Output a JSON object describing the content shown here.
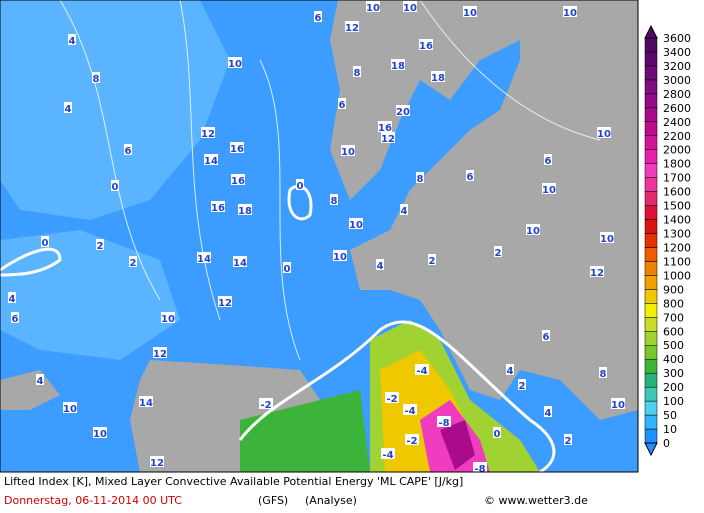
{
  "map": {
    "contour_labels": [
      6,
      10,
      10,
      10,
      10,
      10,
      12,
      16,
      14,
      16,
      16,
      18,
      14,
      14,
      12,
      10,
      12,
      14,
      10,
      10,
      12,
      4,
      6,
      4,
      0,
      2,
      2,
      0,
      6,
      4,
      8,
      4,
      0,
      0,
      10,
      4,
      2,
      2,
      10,
      12,
      10,
      10,
      6,
      10,
      6,
      8,
      4,
      10,
      8,
      10,
      16,
      12,
      20,
      16,
      18,
      18,
      12,
      8,
      6,
      2,
      2,
      10,
      4,
      8,
      -2,
      -2,
      -4,
      -4,
      -2,
      -4,
      -8,
      -8,
      0,
      6,
      4
    ],
    "legend": {
      "levels": [
        0,
        10,
        50,
        100,
        200,
        300,
        400,
        500,
        600,
        700,
        800,
        900,
        1000,
        1100,
        1200,
        1300,
        1400,
        1500,
        1600,
        1700,
        1800,
        2000,
        2200,
        2400,
        2600,
        2800,
        3000,
        3200,
        3400,
        3600
      ],
      "colors": [
        "#1e90ff",
        "#33b4ff",
        "#4cd2f0",
        "#3cc8b4",
        "#28b478",
        "#3cb43c",
        "#78c828",
        "#a0d232",
        "#c8dc28",
        "#f0f000",
        "#f0c800",
        "#f0a000",
        "#f08200",
        "#f05a00",
        "#e63200",
        "#dc1414",
        "#dc143c",
        "#e6286e",
        "#f0329b",
        "#f03cbe",
        "#e61eaa",
        "#d21496",
        "#be0a8c",
        "#aa0a8c",
        "#960a8c",
        "#820a82",
        "#6e0a78",
        "#5a0a6e",
        "#500a64"
      ]
    },
    "footer": {
      "description": "Lifted Index [K], Mixed Layer Convective Available Potential Energy 'ML CAPE' [J/kg]",
      "date": "Donnerstag, 06-11-2014  00 UTC",
      "model": "(GFS)",
      "mode": "(Analyse)",
      "credit": "© www.wetter3.de"
    }
  }
}
